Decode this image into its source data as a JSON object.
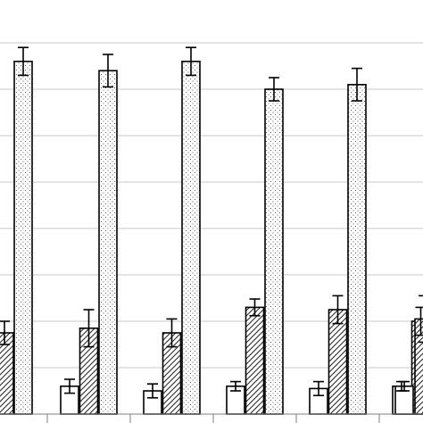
{
  "chart_data": {
    "type": "bar",
    "title": "",
    "xlabel": "",
    "ylabel": "",
    "ylim": [
      0,
      9
    ],
    "grid": true,
    "legend": "none",
    "categories": [
      "",
      "",
      "",
      "",
      ""
    ],
    "series": [
      {
        "pattern": "white",
        "fill": "#ffffff",
        "values": [
          0.6,
          0.5,
          0.6,
          0.55,
          0.6
        ],
        "errors": [
          0.15,
          0.15,
          0.1,
          0.15,
          0.1
        ]
      },
      {
        "pattern": "diagonal-hatch",
        "fill": "#ffffff",
        "values": [
          1.85,
          1.75,
          2.3,
          2.25,
          2.0
        ],
        "errors": [
          0.4,
          0.3,
          0.18,
          0.3,
          0.3
        ]
      },
      {
        "pattern": "dotted",
        "fill": "#ffffff",
        "values": [
          7.4,
          7.6,
          7.0,
          7.1,
          7.4
        ],
        "errors": [
          0.35,
          0.3,
          0.25,
          0.35,
          0.35
        ]
      }
    ],
    "partial_left_group": {
      "diagonal-hatch": 1.75,
      "diagonal-hatch_error": 0.25,
      "dotted": 7.6,
      "dotted_error": 0.3
    },
    "partial_right_group": {
      "white": 0.6,
      "white_error": 0.1,
      "diagonal-hatch": 2.05,
      "diagonal-hatch_error": 0.5
    }
  }
}
